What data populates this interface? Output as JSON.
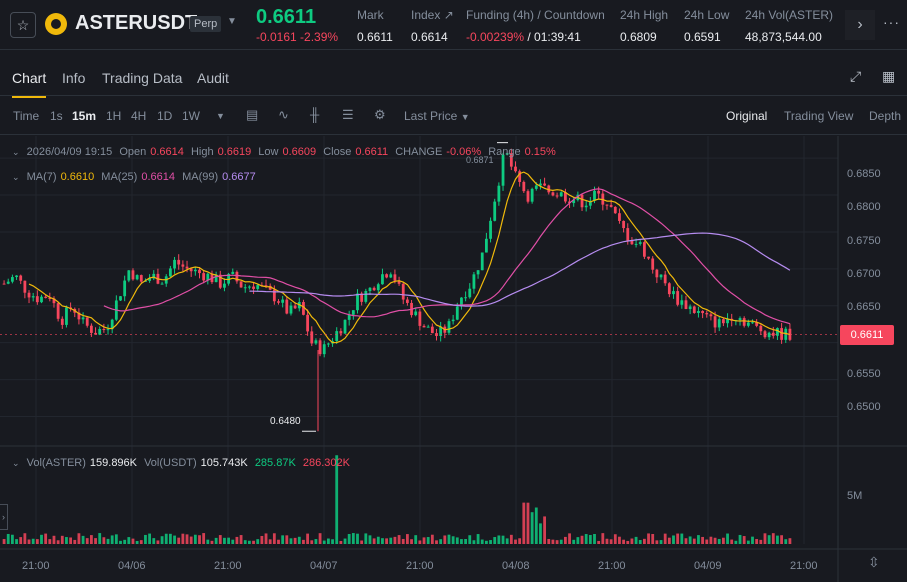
{
  "header": {
    "symbol": "ASTERUSDT",
    "badge": "Perp",
    "price": "0.6611",
    "change": "-0.0161 -2.39%",
    "stats": [
      {
        "label": "Mark",
        "value": "0.6611"
      },
      {
        "label": "Index ↗",
        "value": "0.6614"
      },
      {
        "label": "Funding (4h) / Countdown",
        "value": "-0.00239%",
        "value2": "/ 01:39:41"
      },
      {
        "label": "24h High",
        "value": "0.6809"
      },
      {
        "label": "24h Low",
        "value": "0.6591"
      },
      {
        "label": "24h Vol(ASTER)",
        "value": "48,873,544.00"
      }
    ]
  },
  "tabs": [
    "Chart",
    "Info",
    "Trading Data",
    "Audit"
  ],
  "toolbar": {
    "time_label": "Time",
    "intervals": [
      "1s",
      "15m",
      "1H",
      "4H",
      "1D",
      "1W"
    ],
    "active_interval": "15m",
    "price_type": "Last Price",
    "views": [
      "Original",
      "Trading View",
      "Depth"
    ],
    "active_view": "Original"
  },
  "ohlc": {
    "date": "2026/04/09 19:15",
    "open_label": "Open",
    "open": "0.6614",
    "high_label": "High",
    "high": "0.6619",
    "low_label": "Low",
    "low": "0.6609",
    "close_label": "Close",
    "close": "0.6611",
    "change_label": "CHANGE",
    "change": "-0.06%",
    "range_label": "Range",
    "range": "0.15%"
  },
  "ma": {
    "ma7_label": "MA(7)",
    "ma7": "0.6610",
    "ma25_label": "MA(25)",
    "ma25": "0.6614",
    "ma99_label": "MA(99)",
    "ma99": "0.6677"
  },
  "volume": {
    "vol_aster_label": "Vol(ASTER)",
    "vol_aster": "159.896K",
    "vol_usdt_label": "Vol(USDT)",
    "vol_usdt": "105.743K",
    "v1": "285.87K",
    "v2": "286.302K",
    "axis": "5M"
  },
  "colors": {
    "up": "#0ecb81",
    "down": "#f6465d",
    "accent": "#f0b90b",
    "ma7": "#f0b90b",
    "ma25": "#e04fa6",
    "ma99": "#b68cf0"
  },
  "chart_data": {
    "type": "candlestick",
    "y_ticks": [
      "0.6850",
      "0.6800",
      "0.6750",
      "0.6700",
      "0.6650",
      "0.6550",
      "0.6500"
    ],
    "ylim": [
      0.646,
      0.688
    ],
    "last_price": "0.6611",
    "high_marker": "0.6871",
    "low_marker": "0.6480",
    "x_ticks": [
      "21:00",
      "04/06",
      "21:00",
      "04/07",
      "21:00",
      "04/08",
      "21:00",
      "04/09",
      "21:00"
    ],
    "price_path": [
      0.668,
      0.669,
      0.667,
      0.666,
      0.6665,
      0.663,
      0.665,
      0.6625,
      0.6615,
      0.662,
      0.666,
      0.67,
      0.668,
      0.669,
      0.6685,
      0.671,
      0.67,
      0.6695,
      0.669,
      0.668,
      0.669,
      0.6675,
      0.668,
      0.667,
      0.666,
      0.664,
      0.665,
      0.66,
      0.659,
      0.661,
      0.663,
      0.666,
      0.667,
      0.669,
      0.67,
      0.666,
      0.664,
      0.662,
      0.661,
      0.662,
      0.666,
      0.668,
      0.672,
      0.679,
      0.686,
      0.682,
      0.68,
      0.681,
      0.6805,
      0.68,
      0.6795,
      0.679,
      0.68,
      0.679,
      0.676,
      0.674,
      0.673,
      0.67,
      0.668,
      0.666,
      0.665,
      0.664,
      0.663,
      0.6625,
      0.664,
      0.663,
      0.662,
      0.6615,
      0.6612,
      0.6611
    ]
  }
}
